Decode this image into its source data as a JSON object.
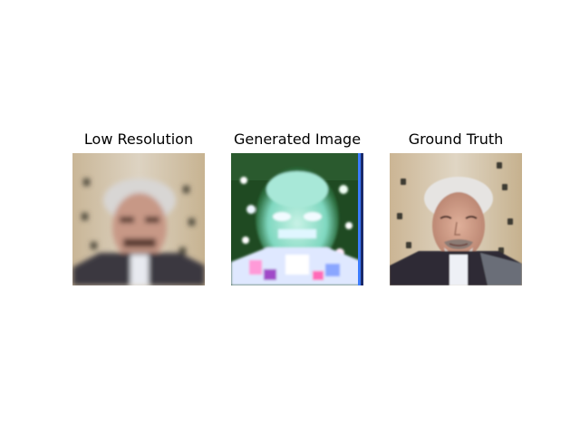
{
  "panels": [
    {
      "title": "Low Resolution",
      "image_subject": "low-resolution-face-photo"
    },
    {
      "title": "Generated Image",
      "image_subject": "noisy-generated-face-photo"
    },
    {
      "title": "Ground Truth",
      "image_subject": "high-resolution-face-photo"
    }
  ]
}
